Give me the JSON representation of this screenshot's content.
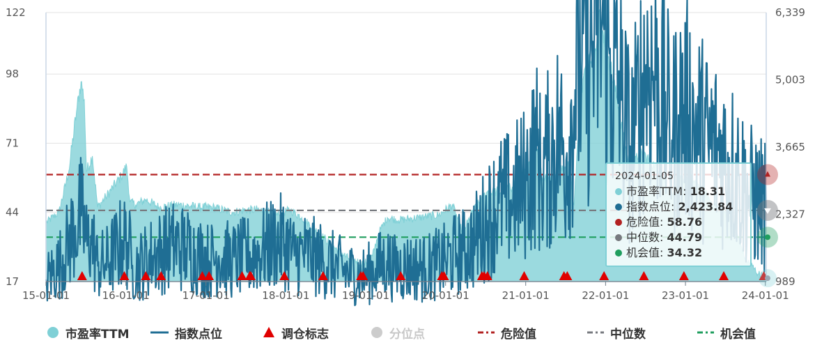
{
  "chart_data": {
    "type": "line",
    "left_axis": {
      "ticks": [
        "122",
        "98",
        "71",
        "44",
        "17"
      ],
      "values": [
        122,
        98,
        71,
        44,
        17
      ],
      "min": 17,
      "max": 122
    },
    "right_axis": {
      "ticks": [
        "6,339",
        "5,003",
        "3,665",
        "2,327",
        "989"
      ],
      "values": [
        6339,
        5003,
        3665,
        2327,
        989
      ],
      "min": 989,
      "max": 6339
    },
    "x_ticks": [
      "15-01-01",
      "16-01-01",
      "17-01-01",
      "18-01-01",
      "19-01-01",
      "20-01-01",
      "21-01-01",
      "22-01-01",
      "23-01-01",
      "24-01-01"
    ],
    "x_range": [
      "2015-01-01",
      "2024-01-05"
    ],
    "series": [
      {
        "name": "市盈率TTM",
        "type": "area",
        "axis": "left",
        "color": "#7fd0d6",
        "points": [
          [
            "2015-01-01",
            40
          ],
          [
            "2015-03-01",
            44
          ],
          [
            "2015-04-15",
            60
          ],
          [
            "2015-05-20",
            83
          ],
          [
            "2015-06-10",
            95
          ],
          [
            "2015-06-25",
            88
          ],
          [
            "2015-07-05",
            60
          ],
          [
            "2015-08-01",
            66
          ],
          [
            "2015-08-25",
            46
          ],
          [
            "2015-10-01",
            50
          ],
          [
            "2015-12-10",
            58
          ],
          [
            "2016-01-05",
            62
          ],
          [
            "2016-01-20",
            48
          ],
          [
            "2016-02-15",
            47
          ],
          [
            "2016-04-01",
            49
          ],
          [
            "2016-06-01",
            46
          ],
          [
            "2016-09-01",
            47
          ],
          [
            "2016-12-01",
            46
          ],
          [
            "2017-02-01",
            46
          ],
          [
            "2017-05-01",
            44
          ],
          [
            "2017-07-01",
            45
          ],
          [
            "2017-09-01",
            45
          ],
          [
            "2017-12-01",
            43
          ],
          [
            "2018-01-20",
            45
          ],
          [
            "2018-03-15",
            42
          ],
          [
            "2018-06-01",
            36
          ],
          [
            "2018-08-01",
            31
          ],
          [
            "2018-10-15",
            26
          ],
          [
            "2018-12-25",
            24
          ],
          [
            "2019-02-01",
            27
          ],
          [
            "2019-03-01",
            36
          ],
          [
            "2019-04-10",
            42
          ],
          [
            "2019-06-01",
            41
          ],
          [
            "2019-09-01",
            42
          ],
          [
            "2019-12-01",
            43
          ],
          [
            "2020-02-01",
            47
          ],
          [
            "2020-03-20",
            36
          ],
          [
            "2020-05-01",
            44
          ],
          [
            "2020-07-10",
            52
          ],
          [
            "2020-09-01",
            52
          ],
          [
            "2020-11-01",
            54
          ],
          [
            "2020-12-20",
            59
          ],
          [
            "2021-01-10",
            60
          ],
          [
            "2021-02-18",
            72
          ],
          [
            "2021-03-15",
            58
          ],
          [
            "2021-05-01",
            58
          ],
          [
            "2021-06-01",
            61
          ],
          [
            "2021-07-15",
            64
          ],
          [
            "2021-08-10",
            47
          ],
          [
            "2021-08-25",
            70
          ],
          [
            "2021-09-20",
            96
          ],
          [
            "2021-10-20",
            106
          ],
          [
            "2021-11-15",
            108
          ],
          [
            "2021-12-01",
            122
          ],
          [
            "2021-12-20",
            115
          ],
          [
            "2022-01-15",
            105
          ],
          [
            "2022-03-01",
            85
          ],
          [
            "2022-04-26",
            59
          ],
          [
            "2022-06-01",
            67
          ],
          [
            "2022-07-05",
            66
          ],
          [
            "2022-09-01",
            60
          ],
          [
            "2022-10-31",
            52
          ],
          [
            "2022-12-01",
            56
          ],
          [
            "2023-01-15",
            58
          ],
          [
            "2023-03-01",
            55
          ],
          [
            "2023-05-01",
            48
          ],
          [
            "2023-08-01",
            42
          ],
          [
            "2023-10-01",
            26
          ],
          [
            "2023-12-01",
            20
          ],
          [
            "2024-01-05",
            18.31
          ]
        ]
      },
      {
        "name": "指数点位",
        "type": "line",
        "axis": "right",
        "color": "#1f6e94",
        "points": [
          [
            "2015-01-01",
            1030
          ],
          [
            "2015-03-01",
            1300
          ],
          [
            "2015-04-15",
            1750
          ],
          [
            "2015-05-15",
            2100
          ],
          [
            "2015-06-12",
            2300
          ],
          [
            "2015-07-08",
            1700
          ],
          [
            "2015-07-25",
            1900
          ],
          [
            "2015-08-26",
            1300
          ],
          [
            "2015-10-01",
            1350
          ],
          [
            "2015-12-20",
            1800
          ],
          [
            "2016-01-15",
            1700
          ],
          [
            "2016-01-28",
            1250
          ],
          [
            "2016-03-01",
            1300
          ],
          [
            "2016-05-01",
            1500
          ],
          [
            "2016-08-01",
            1700
          ],
          [
            "2016-10-01",
            1650
          ],
          [
            "2016-12-01",
            1500
          ],
          [
            "2017-01-15",
            1400
          ],
          [
            "2017-03-01",
            1500
          ],
          [
            "2017-05-01",
            1400
          ],
          [
            "2017-07-15",
            1500
          ],
          [
            "2017-09-15",
            1600
          ],
          [
            "2017-11-15",
            1800
          ],
          [
            "2018-01-01",
            1750
          ],
          [
            "2018-02-09",
            1500
          ],
          [
            "2018-04-01",
            1550
          ],
          [
            "2018-06-20",
            1400
          ],
          [
            "2018-08-15",
            1280
          ],
          [
            "2018-10-19",
            1150
          ],
          [
            "2018-12-28",
            1100
          ],
          [
            "2019-02-15",
            1250
          ],
          [
            "2019-04-08",
            1400
          ],
          [
            "2019-05-10",
            1250
          ],
          [
            "2019-08-01",
            1280
          ],
          [
            "2019-10-01",
            1250
          ],
          [
            "2019-12-31",
            1400
          ],
          [
            "2020-02-20",
            1550
          ],
          [
            "2020-03-23",
            1600
          ],
          [
            "2020-05-15",
            1800
          ],
          [
            "2020-07-10",
            2200
          ],
          [
            "2020-09-01",
            2550
          ],
          [
            "2020-10-20",
            2600
          ],
          [
            "2020-12-20",
            2900
          ],
          [
            "2021-01-05",
            3000
          ],
          [
            "2021-02-18",
            3600
          ],
          [
            "2021-03-10",
            3100
          ],
          [
            "2021-04-15",
            3400
          ],
          [
            "2021-06-01",
            3900
          ],
          [
            "2021-07-05",
            3400
          ],
          [
            "2021-08-15",
            4800
          ],
          [
            "2021-09-15",
            5400
          ],
          [
            "2021-10-20",
            5300
          ],
          [
            "2021-11-20",
            5900
          ],
          [
            "2021-12-08",
            6250
          ],
          [
            "2021-12-25",
            6000
          ],
          [
            "2022-01-28",
            5100
          ],
          [
            "2022-03-15",
            4600
          ],
          [
            "2022-04-26",
            3600
          ],
          [
            "2022-05-20",
            4100
          ],
          [
            "2022-07-05",
            5300
          ],
          [
            "2022-08-20",
            5000
          ],
          [
            "2022-10-10",
            4200
          ],
          [
            "2022-10-31",
            3800
          ],
          [
            "2022-11-30",
            4300
          ],
          [
            "2023-01-15",
            4300
          ],
          [
            "2023-02-15",
            4050
          ],
          [
            "2023-04-15",
            3700
          ],
          [
            "2023-06-01",
            3600
          ],
          [
            "2023-08-01",
            3300
          ],
          [
            "2023-09-01",
            3100
          ],
          [
            "2023-10-20",
            2700
          ],
          [
            "2023-12-01",
            2600
          ],
          [
            "2024-01-05",
            2423.84
          ]
        ]
      }
    ],
    "reference_lines": [
      {
        "name": "危险值",
        "value": 58.76,
        "axis": "left",
        "color": "#b22222",
        "style": "dashed"
      },
      {
        "name": "中位数",
        "value": 44.79,
        "axis": "left",
        "color": "#777a7f",
        "style": "dashed"
      },
      {
        "name": "机会值",
        "value": 34.32,
        "axis": "left",
        "color": "#1f9e5e",
        "style": "dashed"
      }
    ],
    "rebalance_markers": {
      "name": "调仓标志",
      "color": "#e00000",
      "dates": [
        "2015-06-15",
        "2015-12-25",
        "2016-04-01",
        "2016-06-10",
        "2016-12-15",
        "2017-01-15",
        "2017-06-15",
        "2017-07-20",
        "2017-07-25",
        "2017-12-25",
        "2018-06-20",
        "2018-12-10",
        "2018-12-20",
        "2019-06-10",
        "2019-12-15",
        "2019-12-25",
        "2020-06-15",
        "2020-06-25",
        "2020-07-10",
        "2020-12-25",
        "2021-06-25",
        "2021-07-10",
        "2021-12-25",
        "2022-06-25",
        "2022-12-25",
        "2023-06-25",
        "2023-12-25"
      ]
    },
    "percentile_points": {
      "name": "分位点",
      "enabled": false
    },
    "grid": true
  },
  "tooltip": {
    "date": "2024-01-05",
    "rows": [
      {
        "label": "市盈率TTM: ",
        "value": "18.31",
        "color": "#7fd0d6"
      },
      {
        "label": "指数点位: ",
        "value": "2,423.84",
        "color": "#1f6e94"
      },
      {
        "label": "危险值: ",
        "value": "58.76",
        "color": "#b22222"
      },
      {
        "label": "中位数: ",
        "value": "44.79",
        "color": "#777a7f"
      },
      {
        "label": "机会值: ",
        "value": "34.32",
        "color": "#1f9e5e"
      }
    ]
  },
  "legend": {
    "items": [
      {
        "label": "市盈率TTM",
        "symbol": "circle",
        "color": "#7fd0d6",
        "enabled": true
      },
      {
        "label": "指数点位",
        "symbol": "line",
        "color": "#1f6e94",
        "enabled": true
      },
      {
        "label": "调仓标志",
        "symbol": "triangle",
        "color": "#e00000",
        "enabled": true
      },
      {
        "label": "分位点",
        "symbol": "circle",
        "color": "#cccccc",
        "enabled": false
      },
      {
        "label": "危险值",
        "symbol": "dash",
        "color": "#b22222",
        "enabled": true
      },
      {
        "label": "中位数",
        "symbol": "dash",
        "color": "#777a7f",
        "enabled": true
      },
      {
        "label": "机会值",
        "symbol": "dash",
        "color": "#1f9e5e",
        "enabled": true
      }
    ]
  }
}
